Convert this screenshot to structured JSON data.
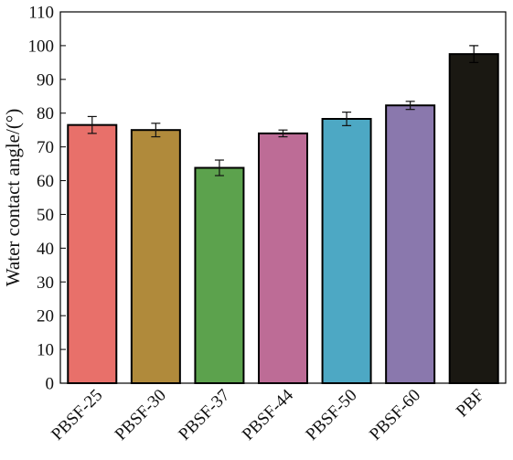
{
  "chart_data": {
    "type": "bar",
    "title": "",
    "xlabel": "",
    "ylabel": "Water contact angle/(°)",
    "ylim": [
      0,
      110
    ],
    "yticks": [
      0,
      10,
      20,
      30,
      40,
      50,
      60,
      70,
      80,
      90,
      100,
      110
    ],
    "grid": false,
    "categories": [
      "PBSF-25",
      "PBSF-30",
      "PBSF-37",
      "PBSF-44",
      "PBSF-50",
      "PBSF-60",
      "PBF"
    ],
    "values": [
      76.5,
      75.0,
      63.8,
      74.0,
      78.3,
      82.3,
      97.5
    ],
    "errors": [
      2.5,
      2.0,
      2.3,
      1.0,
      2.0,
      1.2,
      2.5
    ],
    "colors": [
      "#e8706a",
      "#b08a3b",
      "#5ca24d",
      "#bd6c96",
      "#4da8c4",
      "#8a78ad",
      "#1a1812"
    ]
  }
}
